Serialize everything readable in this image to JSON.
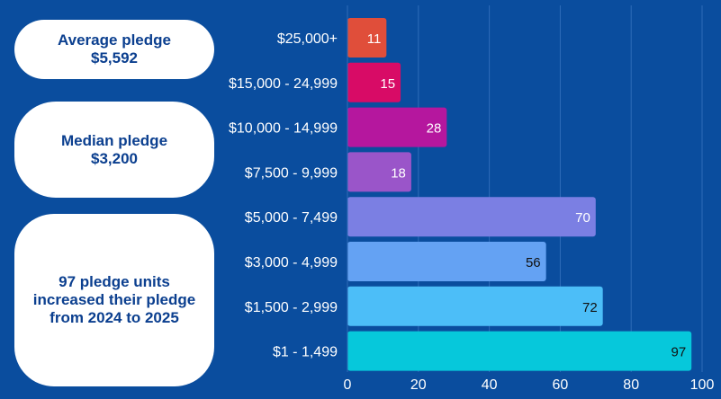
{
  "cards": {
    "average": {
      "line1": "Average pledge",
      "line2": "$5,592"
    },
    "median": {
      "line1": "Median pledge",
      "line2": "$3,200"
    },
    "units": {
      "text": "97 pledge units increased their pledge from 2024 to 2025"
    }
  },
  "chart_data": {
    "type": "bar",
    "orientation": "horizontal",
    "categories": [
      "$25,000+",
      "$15,000 - 24,999",
      "$10,000 - 14,999",
      "$7,500 - 9,999",
      "$5,000 - 7,499",
      "$3,000 - 4,999",
      "$1,500 - 2,999",
      "$1 - 1,499"
    ],
    "values": [
      11,
      15,
      28,
      18,
      70,
      56,
      72,
      97
    ],
    "colors": [
      "#e04e3a",
      "#d80b66",
      "#b5179e",
      "#9a55c9",
      "#7b7fe3",
      "#64a2f3",
      "#4cbef8",
      "#06c8db"
    ],
    "value_label_colors": [
      "#ffffff",
      "#ffffff",
      "#ffffff",
      "#ffffff",
      "#ffffff",
      "#111111",
      "#111111",
      "#111111"
    ],
    "xlim": [
      0,
      100
    ],
    "xticks": [
      0,
      20,
      40,
      60,
      80,
      100
    ],
    "grid": true,
    "title": "",
    "xlabel": "",
    "ylabel": ""
  }
}
